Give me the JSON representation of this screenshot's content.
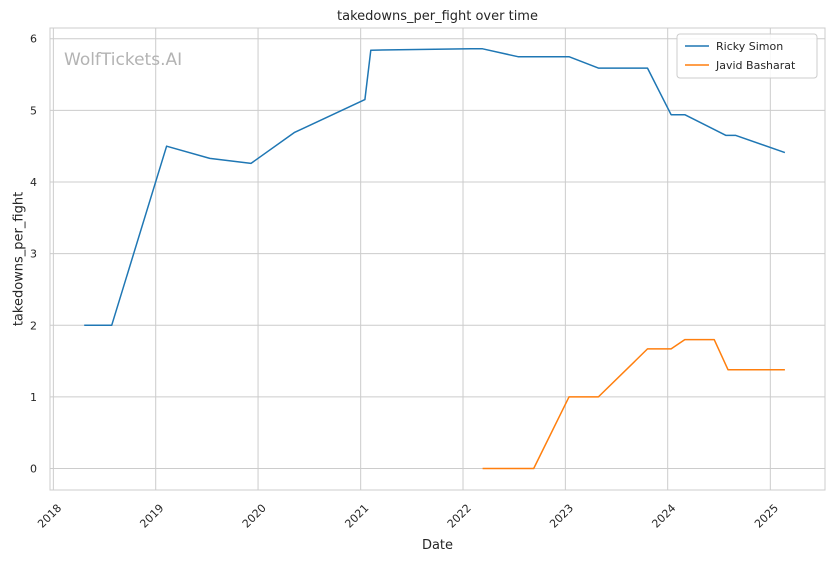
{
  "chart_data": {
    "type": "line",
    "title": "takedowns_per_fight over time",
    "xlabel": "Date",
    "ylabel": "takedowns_per_fight",
    "watermark": "WolfTickets.AI",
    "x_ticks": [
      "2018",
      "2019",
      "2020",
      "2021",
      "2022",
      "2023",
      "2024",
      "2025"
    ],
    "y_ticks": [
      0,
      1,
      2,
      3,
      4,
      5,
      6
    ],
    "xlim": [
      "2017-12-20",
      "2025-07-15"
    ],
    "ylim": [
      -0.3,
      6.15
    ],
    "grid": true,
    "legend_position": "top-right",
    "series": [
      {
        "name": "Ricky Simon",
        "color": "#1f77b4",
        "points": [
          [
            "2018-04-21",
            2.0
          ],
          [
            "2018-07-28",
            2.0
          ],
          [
            "2019-02-09",
            4.5
          ],
          [
            "2019-07-13",
            4.33
          ],
          [
            "2019-12-07",
            4.26
          ],
          [
            "2020-05-09",
            4.69
          ],
          [
            "2021-01-16",
            5.15
          ],
          [
            "2021-02-06",
            5.84
          ],
          [
            "2022-01-29",
            5.86
          ],
          [
            "2022-03-12",
            5.86
          ],
          [
            "2022-07-16",
            5.75
          ],
          [
            "2023-01-14",
            5.75
          ],
          [
            "2023-04-29",
            5.59
          ],
          [
            "2023-10-21",
            5.59
          ],
          [
            "2024-01-13",
            4.94
          ],
          [
            "2024-03-02",
            4.94
          ],
          [
            "2024-07-27",
            4.65
          ],
          [
            "2024-08-31",
            4.65
          ],
          [
            "2025-02-22",
            4.41
          ]
        ]
      },
      {
        "name": "Javid Basharat",
        "color": "#ff7f0e",
        "points": [
          [
            "2022-03-12",
            0.0
          ],
          [
            "2022-08-13",
            0.0
          ],
          [
            "2022-09-10",
            0.0
          ],
          [
            "2023-01-14",
            1.0
          ],
          [
            "2023-04-29",
            1.0
          ],
          [
            "2023-10-21",
            1.67
          ],
          [
            "2024-01-13",
            1.67
          ],
          [
            "2024-03-02",
            1.8
          ],
          [
            "2024-06-15",
            1.8
          ],
          [
            "2024-08-03",
            1.38
          ],
          [
            "2025-02-22",
            1.38
          ]
        ]
      }
    ]
  }
}
